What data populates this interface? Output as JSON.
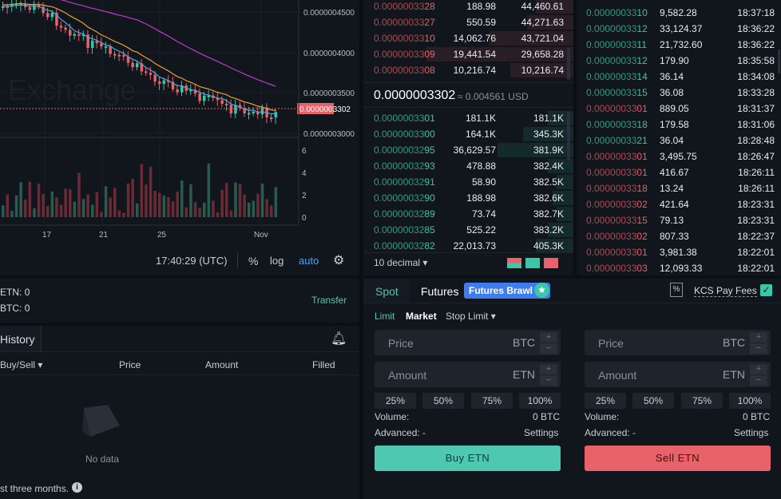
{
  "chart": {
    "watermark": "Exchange",
    "price_labels": [
      "0.0000004500",
      "0.0000004000",
      "0.0000003500",
      "0.0000003000"
    ],
    "current_price_tag": "0.0000003302",
    "volume_labels": [
      "6",
      "4",
      "2",
      "0"
    ],
    "date_labels": [
      "17",
      "21",
      "25",
      "Nov"
    ],
    "time": "17:40:29 (UTC)",
    "toolbar": {
      "percent": "%",
      "log": "log",
      "auto": "auto"
    }
  },
  "orderbook": {
    "asks": [
      {
        "price_main": "0.00000033",
        "price_tail": "28",
        "amount": "188.98",
        "total": "44,460.61"
      },
      {
        "price_main": "0.00000033",
        "price_tail": "27",
        "amount": "550.59",
        "total": "44,271.63"
      },
      {
        "price_main": "0.00000033",
        "price_tail": "10",
        "amount": "14,062.76",
        "total": "43,721.04"
      },
      {
        "price_main": "0.00000033",
        "price_tail": "09",
        "amount": "19,441.54",
        "total": "29,658.28"
      },
      {
        "price_main": "0.00000033",
        "price_tail": "08",
        "amount": "10,216.74",
        "total": "10,216.74"
      }
    ],
    "last_price": "0.0000003302",
    "last_price_usd": "≈ 0.004561 USD",
    "bids": [
      {
        "price_main": "0.00000033",
        "price_tail": "01",
        "amount": "181.1K",
        "total": "181.1K"
      },
      {
        "price_main": "0.00000033",
        "price_tail": "00",
        "amount": "164.1K",
        "total": "345.3K"
      },
      {
        "price_main": "0.00000032",
        "price_tail": "95",
        "amount": "36,629.57",
        "total": "381.9K"
      },
      {
        "price_main": "0.00000032",
        "price_tail": "93",
        "amount": "478.88",
        "total": "382.4K"
      },
      {
        "price_main": "0.00000032",
        "price_tail": "91",
        "amount": "58.90",
        "total": "382.5K"
      },
      {
        "price_main": "0.00000032",
        "price_tail": "90",
        "amount": "188.98",
        "total": "382.6K"
      },
      {
        "price_main": "0.00000032",
        "price_tail": "89",
        "amount": "73.74",
        "total": "382.7K"
      },
      {
        "price_main": "0.00000032",
        "price_tail": "85",
        "amount": "525.22",
        "total": "383.2K"
      },
      {
        "price_main": "0.00000032",
        "price_tail": "82",
        "amount": "22,013.73",
        "total": "405.3K"
      }
    ],
    "decimal": "10 decimal"
  },
  "trades": [
    {
      "side": "buy",
      "price_main": "0.00000033",
      "price_tail": "10",
      "amount": "9,582.28",
      "time": "18:37:18"
    },
    {
      "side": "buy",
      "price_main": "0.00000033",
      "price_tail": "12",
      "amount": "33,124.37",
      "time": "18:36:22"
    },
    {
      "side": "buy",
      "price_main": "0.00000033",
      "price_tail": "11",
      "amount": "21,732.60",
      "time": "18:36:22"
    },
    {
      "side": "buy",
      "price_main": "0.00000033",
      "price_tail": "12",
      "amount": "179.90",
      "time": "18:35:58"
    },
    {
      "side": "buy",
      "price_main": "0.00000033",
      "price_tail": "14",
      "amount": "36.14",
      "time": "18:34:08"
    },
    {
      "side": "buy",
      "price_main": "0.00000033",
      "price_tail": "15",
      "amount": "36.08",
      "time": "18:33:28"
    },
    {
      "side": "sell",
      "price_main": "0.00000033",
      "price_tail": "01",
      "amount": "889.05",
      "time": "18:31:37"
    },
    {
      "side": "buy",
      "price_main": "0.00000033",
      "price_tail": "18",
      "amount": "179.58",
      "time": "18:31:06"
    },
    {
      "side": "buy",
      "price_main": "0.00000033",
      "price_tail": "21",
      "amount": "36.04",
      "time": "18:28:48"
    },
    {
      "side": "sell",
      "price_main": "0.00000033",
      "price_tail": "01",
      "amount": "3,495.75",
      "time": "18:26:47"
    },
    {
      "side": "sell",
      "price_main": "0.00000033",
      "price_tail": "01",
      "amount": "416.67",
      "time": "18:26:11"
    },
    {
      "side": "sell",
      "price_main": "0.00000033",
      "price_tail": "18",
      "amount": "13.24",
      "time": "18:26:11"
    },
    {
      "side": "sell",
      "price_main": "0.00000033",
      "price_tail": "02",
      "amount": "421.64",
      "time": "18:23:31"
    },
    {
      "side": "sell",
      "price_main": "0.00000033",
      "price_tail": "15",
      "amount": "79.13",
      "time": "18:23:31"
    },
    {
      "side": "sell",
      "price_main": "0.00000033",
      "price_tail": "02",
      "amount": "807.33",
      "time": "18:22:37"
    },
    {
      "side": "sell",
      "price_main": "0.00000033",
      "price_tail": "01",
      "amount": "3,981.38",
      "time": "18:22:01"
    },
    {
      "side": "sell",
      "price_main": "0.00000033",
      "price_tail": "03",
      "amount": "12,093.33",
      "time": "18:22:01"
    }
  ],
  "balances": {
    "etn_label": "ETN:",
    "etn_value": "0",
    "btc_label": "BTC:",
    "btc_value": "0",
    "transfer": "Transfer"
  },
  "history": {
    "tab": "History",
    "columns": [
      "Buy/Sell",
      "Price",
      "Amount",
      "Filled"
    ],
    "empty": "No data",
    "footer": "st three months."
  },
  "tradeform": {
    "tabs": {
      "spot": "Spot",
      "futures": "Futures",
      "badge": "Futures Brawl"
    },
    "kcs_fees": "KCS Pay Fees",
    "order_types": [
      "Limit",
      "Market",
      "Stop Limit"
    ],
    "buy": {
      "price_label": "Price",
      "price_unit": "BTC",
      "amount_label": "Amount",
      "amount_unit": "ETN",
      "pcts": [
        "25%",
        "50%",
        "75%",
        "100%"
      ],
      "volume_label": "Volume:",
      "volume_value": "0 BTC",
      "advanced_label": "Advanced: -",
      "settings": "Settings",
      "button": "Buy ETN"
    },
    "sell": {
      "price_label": "Price",
      "price_unit": "BTC",
      "amount_label": "Amount",
      "amount_unit": "ETN",
      "pcts": [
        "25%",
        "50%",
        "75%",
        "100%"
      ],
      "volume_label": "Volume:",
      "volume_value": "0 BTC",
      "advanced_label": "Advanced: -",
      "settings": "Settings",
      "button": "Sell ETN"
    }
  },
  "colors": {
    "buy": "#3cc6a8",
    "sell": "#e8626a",
    "accent": "#4ec8b0",
    "badge": "#3f7cf0"
  }
}
